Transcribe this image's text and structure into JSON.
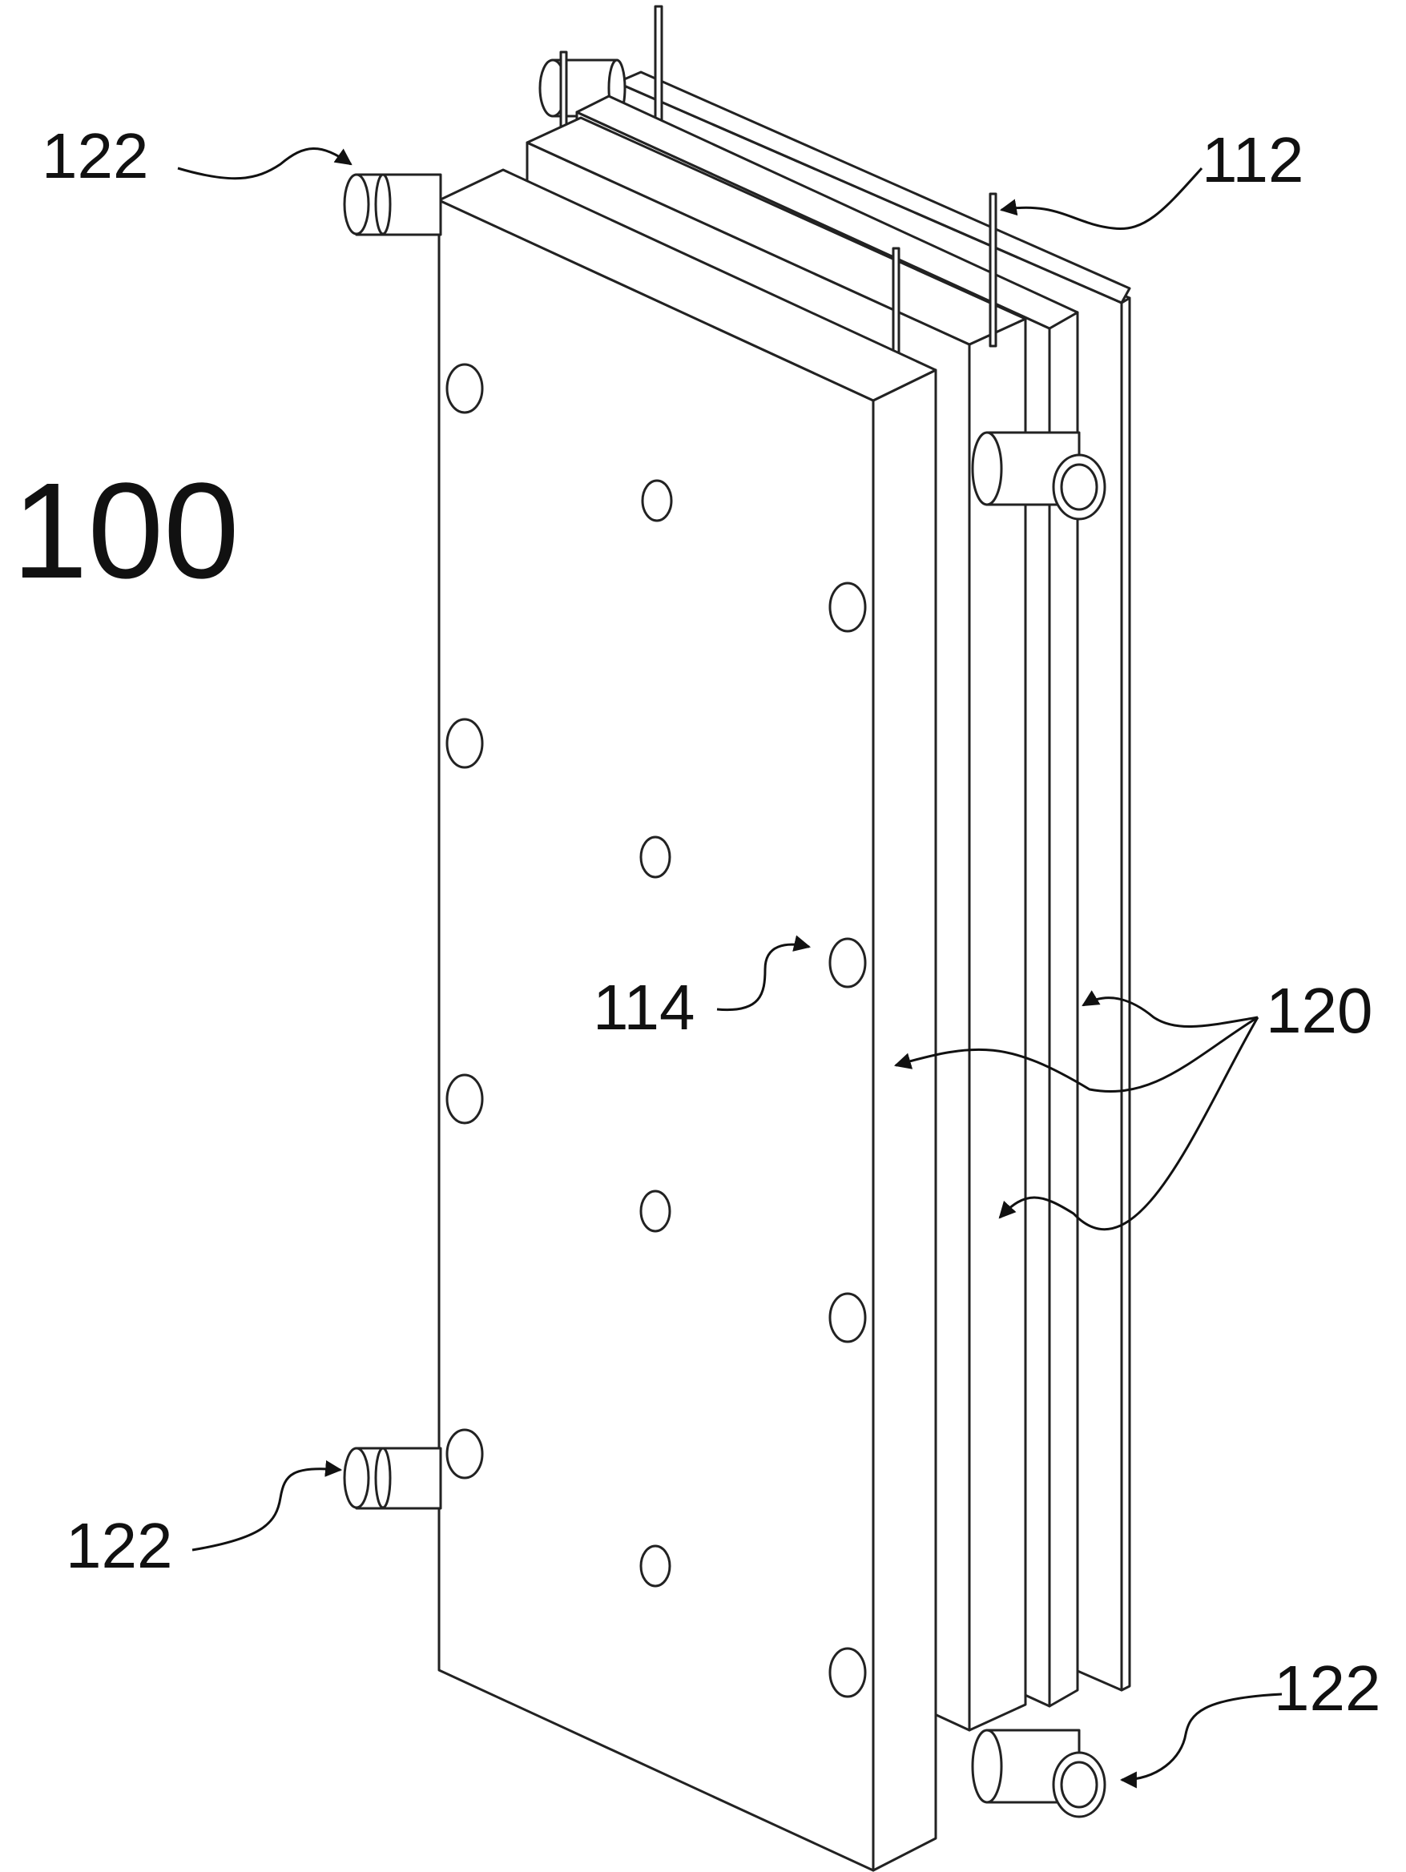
{
  "figure": {
    "number": "100"
  },
  "callouts": {
    "inlet_top_left": "122",
    "inlet_bottom_left": "122",
    "inlet_bottom_right": "122",
    "rod": "112",
    "hole": "114",
    "plates": "120"
  }
}
